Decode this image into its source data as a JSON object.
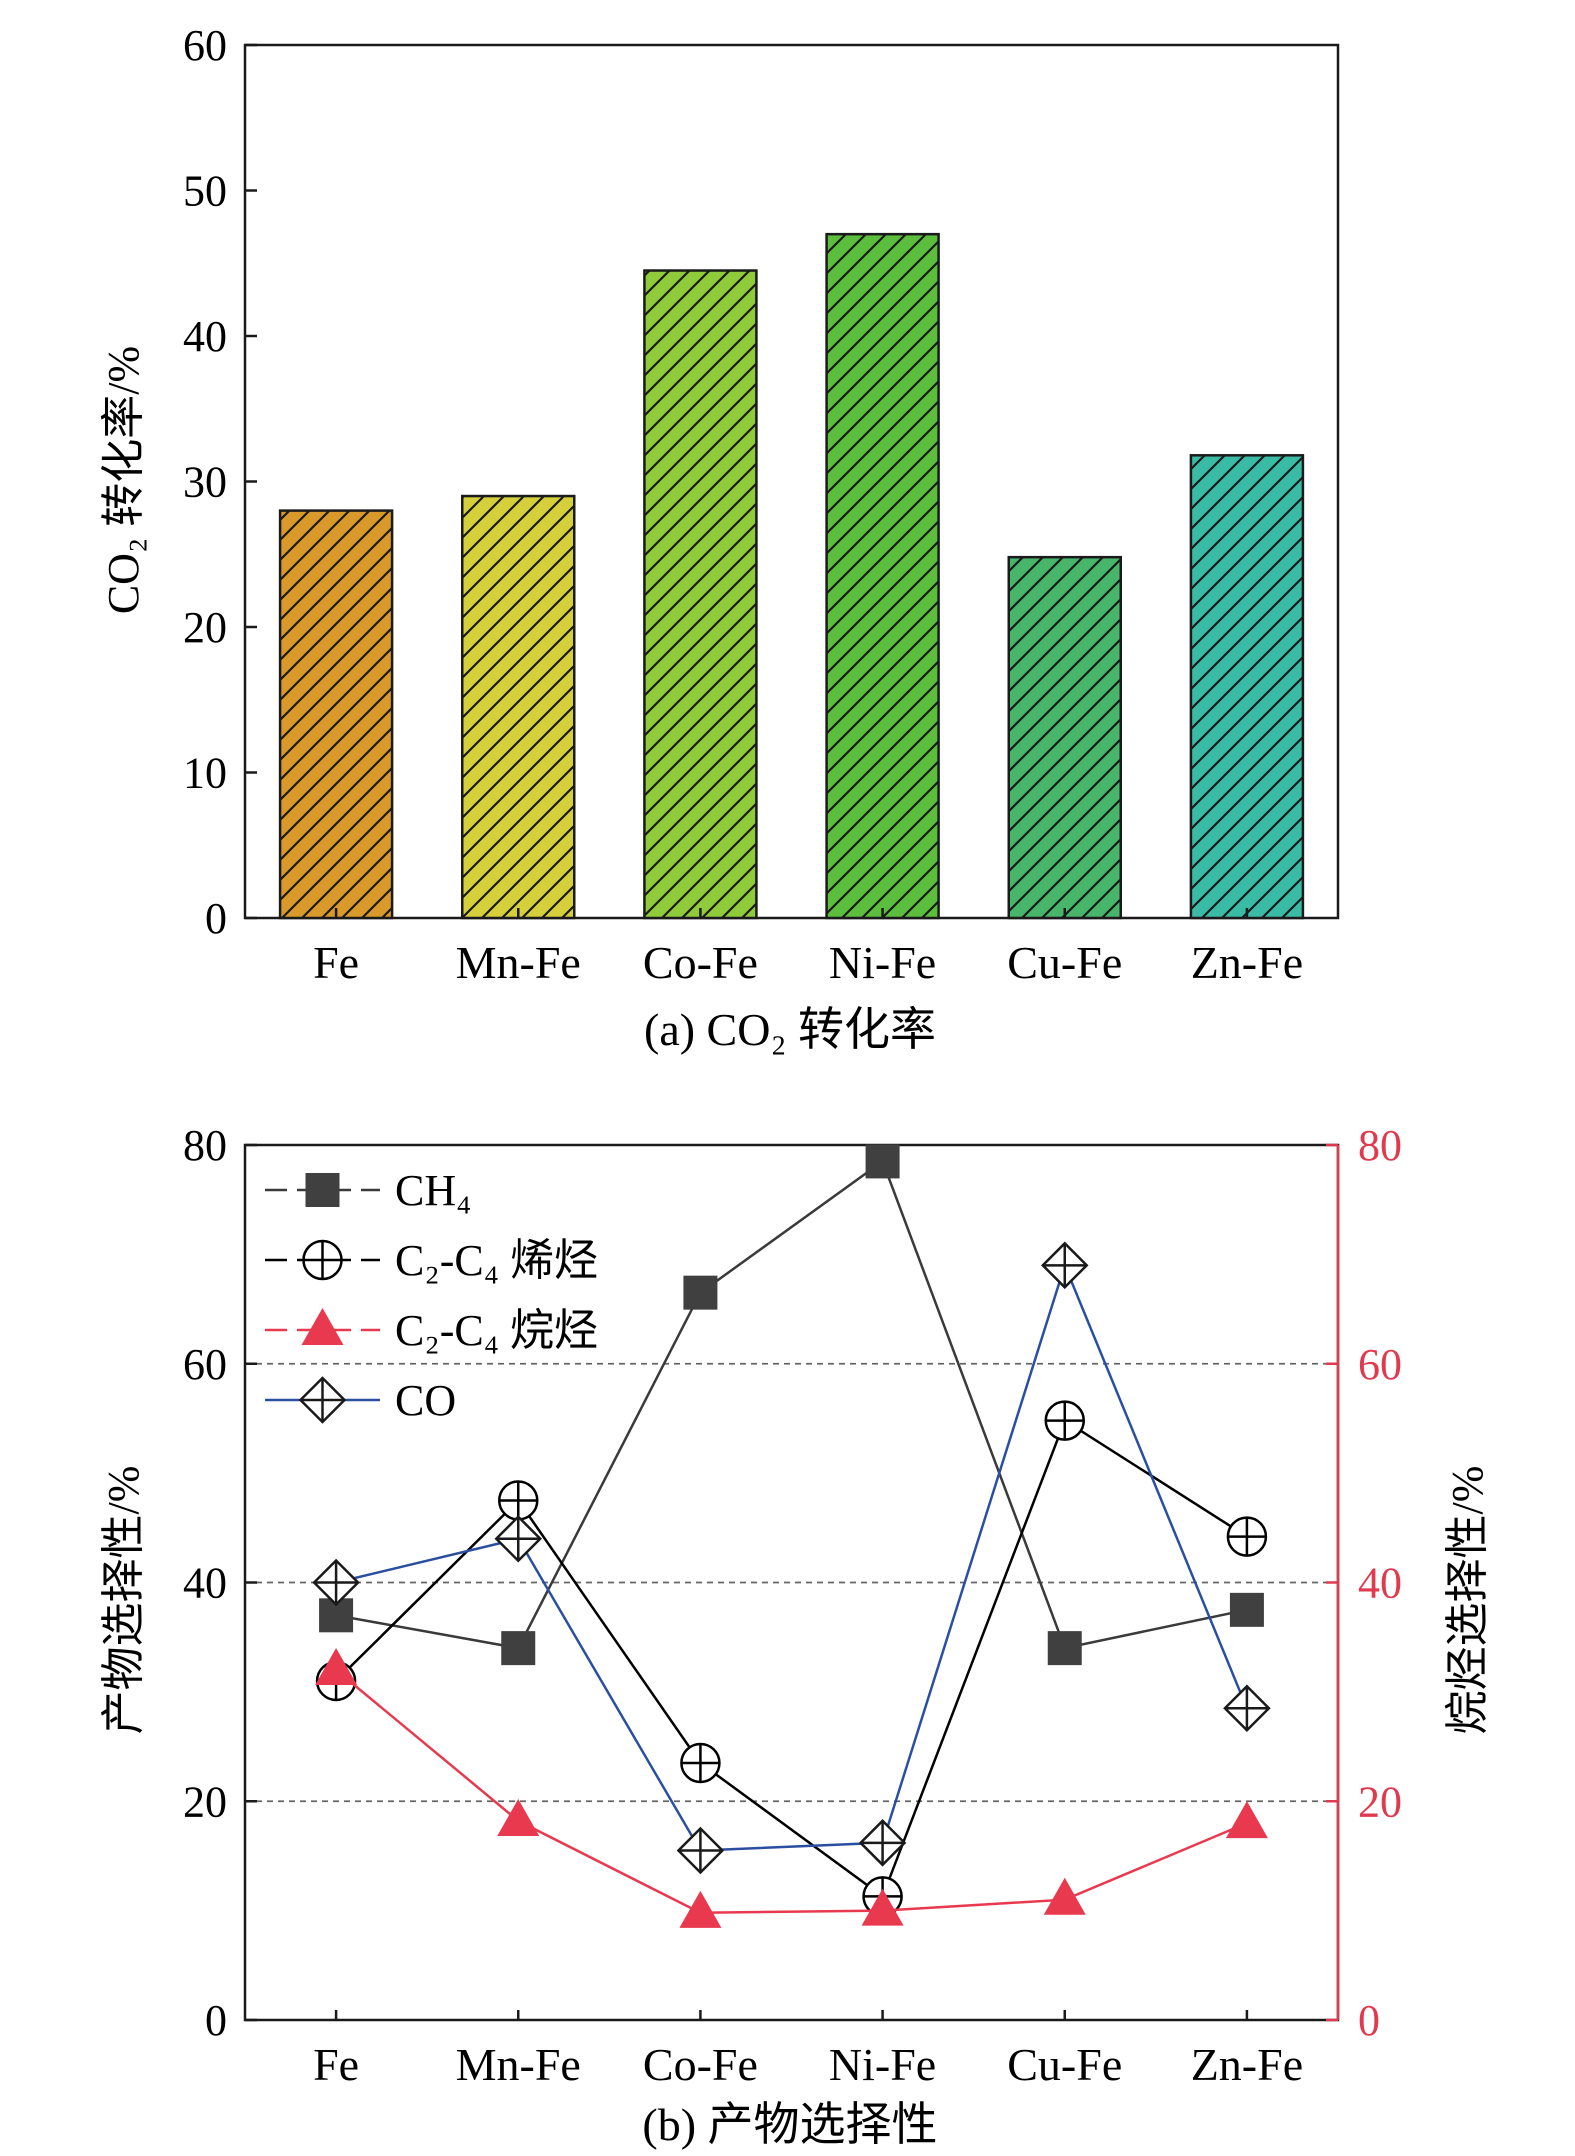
{
  "chart_data": [
    {
      "panel": "a",
      "type": "bar",
      "caption": "(a) CO₂ 转化率",
      "ylabel": "CO₂ 转化率/%",
      "categories": [
        "Fe",
        "Mn-Fe",
        "Co-Fe",
        "Ni-Fe",
        "Cu-Fe",
        "Zn-Fe"
      ],
      "values": [
        28.0,
        29.0,
        44.5,
        47.0,
        24.8,
        31.8
      ],
      "ylim": [
        0,
        60
      ],
      "yticks": [
        "0",
        "10",
        "20",
        "30",
        "40",
        "50",
        "60"
      ],
      "bar_colors": [
        "#D99A2B",
        "#D4CF3A",
        "#8FCB3A",
        "#5BBE3C",
        "#47B56A",
        "#3ABBA6"
      ],
      "hatch": "diagonal",
      "grid": false
    },
    {
      "panel": "b",
      "type": "line",
      "caption": "(b) 产物选择性",
      "ylabel_left": "产物选择性/%",
      "ylabel_right": "烷烃选择性/%",
      "categories": [
        "Fe",
        "Mn-Fe",
        "Co-Fe",
        "Ni-Fe",
        "Cu-Fe",
        "Zn-Fe"
      ],
      "ylim": [
        0,
        80
      ],
      "yticks": [
        "0",
        "20",
        "40",
        "60",
        "80"
      ],
      "grid": "dashed at 20, 40, 60",
      "legend_position": "top-left",
      "series": [
        {
          "name": "CH₄",
          "marker": "square",
          "color": "#404040",
          "axis": "left",
          "values": [
            37.0,
            34.0,
            66.5,
            78.5,
            34.0,
            37.5
          ]
        },
        {
          "name": "C₂-C₄ 烯烃",
          "marker": "circle-plus",
          "color": "#000000",
          "axis": "left",
          "values": [
            31.0,
            47.5,
            23.5,
            11.3,
            54.8,
            44.2
          ]
        },
        {
          "name": "C₂-C₄ 烷烃",
          "marker": "triangle",
          "color": "#E8394F",
          "axis": "right",
          "values": [
            32.0,
            18.2,
            9.8,
            10.0,
            11.0,
            18.0
          ]
        },
        {
          "name": "CO",
          "marker": "diamond-plus",
          "color": "#2B4FA0",
          "axis": "left",
          "values": [
            40.0,
            44.0,
            15.5,
            16.2,
            69.0,
            28.5
          ]
        }
      ],
      "colors": {
        "right_axis": "#E03A4E",
        "grid": "#666666"
      }
    }
  ]
}
